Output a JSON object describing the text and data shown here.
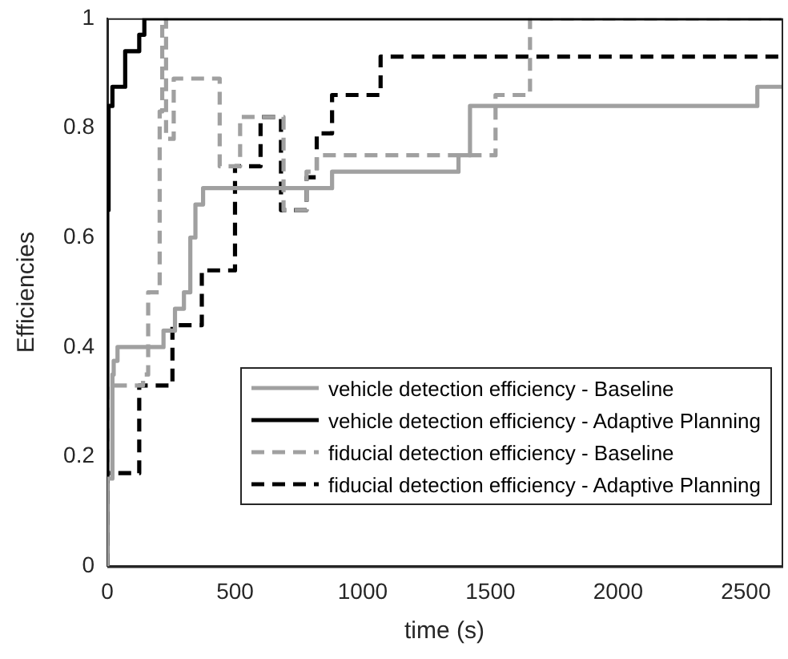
{
  "chart_data": {
    "type": "step",
    "xlabel": "time (s)",
    "ylabel": "Efficiencies",
    "xlim": [
      0,
      2640
    ],
    "ylim": [
      0,
      1
    ],
    "xticks": [
      0,
      500,
      1000,
      1500,
      2000,
      2500
    ],
    "yticks": [
      0,
      0.2,
      0.4,
      0.6,
      0.8,
      1
    ],
    "grid": false,
    "legend": "bottom right",
    "marker": "none",
    "series": [
      {
        "name": "vehicle detection efficiency - Baseline",
        "color": "#a0a0a0",
        "line_style": "solid",
        "x": [
          0,
          20,
          25,
          40,
          205,
          220,
          265,
          300,
          325,
          345,
          375,
          880,
          1375,
          1420,
          2545,
          2620,
          2640
        ],
        "values": [
          0,
          0.16,
          0.35,
          0.375,
          0.4,
          0.4,
          0.43,
          0.47,
          0.5,
          0.6,
          0.66,
          0.69,
          0.72,
          0.75,
          0.84,
          0.875,
          0.875
        ]
      },
      {
        "name": "vehicle detection efficiency - Adaptive Planning",
        "color": "#000000",
        "line_style": "solid",
        "x": [
          0,
          5,
          20,
          70,
          125,
          145,
          310,
          2640
        ],
        "values": [
          0,
          0.65,
          0.84,
          0.875,
          0.94,
          0.97,
          1,
          1
        ]
      },
      {
        "name": "fiducial detection efficiency - Baseline",
        "color": "#a0a0a0",
        "line_style": "dashed",
        "x": [
          0,
          140,
          160,
          205,
          215,
          230,
          260,
          440,
          520,
          690,
          780,
          820,
          1520,
          1655,
          2530,
          2640
        ],
        "values": [
          0,
          0.33,
          0.35,
          0.5,
          0.83,
          1,
          0.78,
          0.89,
          0.73,
          0.82,
          0.65,
          0.72,
          0.75,
          0.86,
          1,
          1
        ]
      },
      {
        "name": "fiducial detection efficiency - Adaptive Planning",
        "color": "#000000",
        "line_style": "dashed",
        "x": [
          0,
          125,
          175,
          255,
          370,
          500,
          600,
          680,
          780,
          820,
          880,
          1070,
          2245,
          2640
        ],
        "values": [
          0,
          0.17,
          0.33,
          0.33,
          0.44,
          0.54,
          0.73,
          0.82,
          0.65,
          0.71,
          0.79,
          0.86,
          0.93,
          0.93
        ]
      }
    ]
  }
}
